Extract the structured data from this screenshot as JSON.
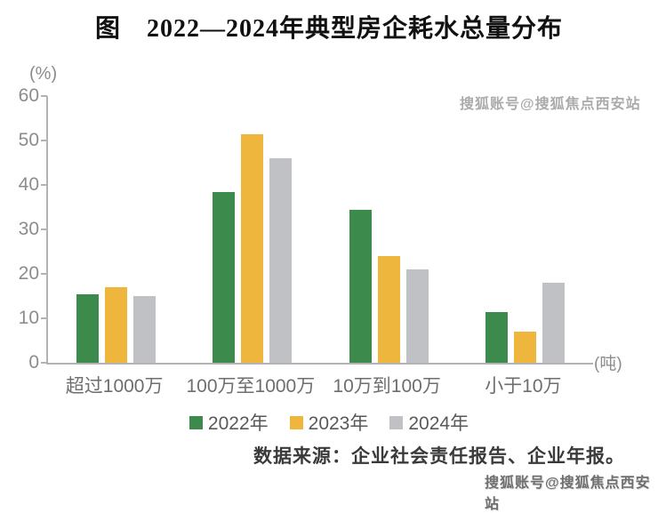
{
  "title": "图　2022—2024年典型房企耗水总量分布",
  "axes": {
    "y_unit": "(%)",
    "x_unit": "(吨)"
  },
  "source_note": "数据来源：企业社会责任报告、企业年报。",
  "watermark_text": "搜狐账号@搜狐焦点西安站",
  "colors": {
    "series_2022": "#3c8a4c",
    "series_2023": "#eeb63d",
    "series_2024": "#bfc1c5",
    "axis_line": "#b3b3b3",
    "tick_label": "#8c8c8c",
    "category_label": "#6e6e6e",
    "legend_label": "#595959",
    "source_text": "#3a3a3a",
    "watermark": "#6f6f6f"
  },
  "chart_data": {
    "type": "bar",
    "title": "图 2022—2024年典型房企耗水总量分布",
    "categories": [
      "超过1000万",
      "100万至1000万",
      "10万到100万",
      "小于10万"
    ],
    "series": [
      {
        "name": "2022年",
        "color": "#3c8a4c",
        "values": [
          15.5,
          38.5,
          34.5,
          11.5
        ]
      },
      {
        "name": "2023年",
        "color": "#eeb63d",
        "values": [
          17,
          51.5,
          24,
          7
        ]
      },
      {
        "name": "2024年",
        "color": "#bfc1c5",
        "values": [
          15,
          46,
          21,
          18
        ]
      }
    ],
    "xlabel": "(吨)",
    "ylabel": "(%)",
    "ylim": [
      0,
      60
    ],
    "yticks": [
      0,
      10,
      20,
      30,
      40,
      50,
      60
    ],
    "grid": false,
    "legend_position": "bottom"
  }
}
